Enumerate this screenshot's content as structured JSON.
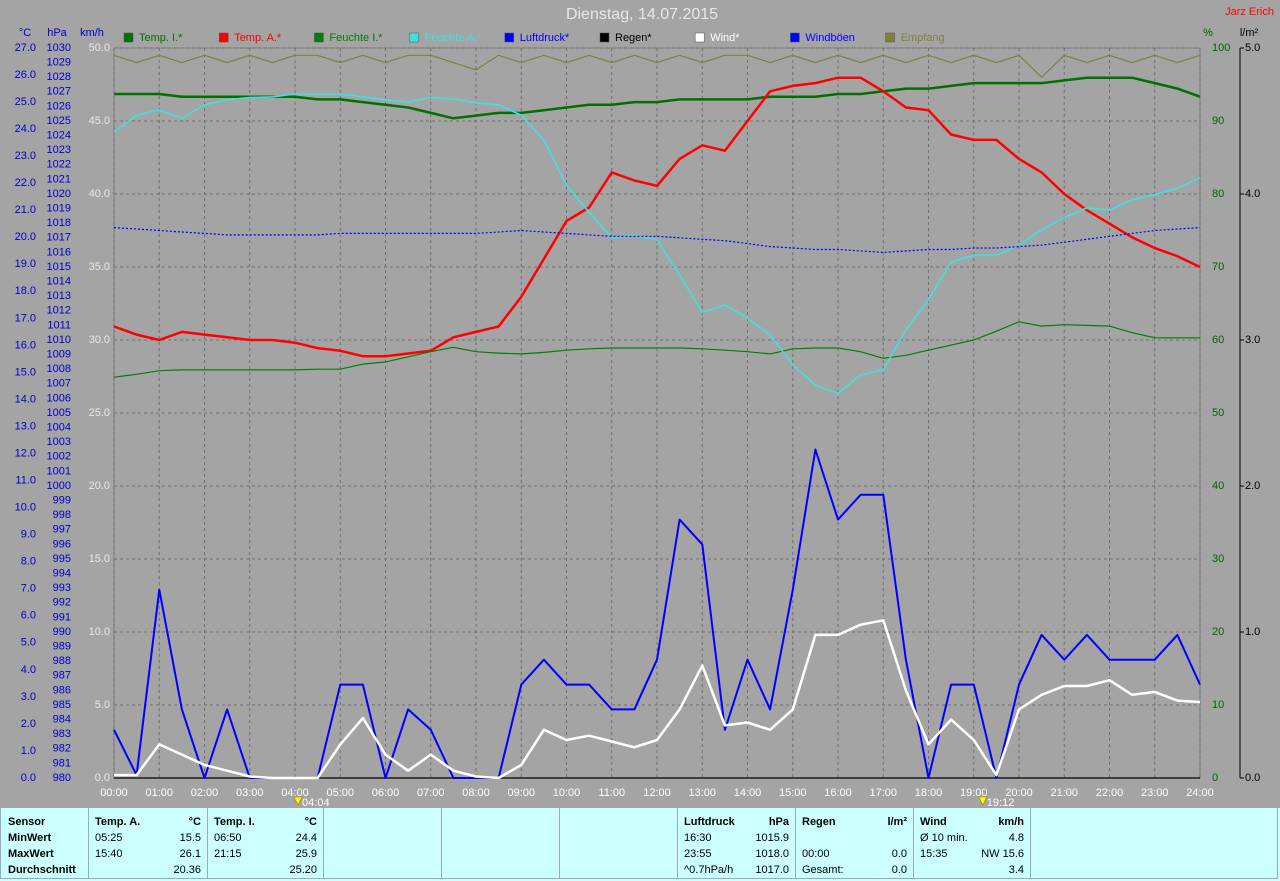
{
  "chart_data": {
    "type": "line",
    "title": "Dienstag, 14.07.2015",
    "author": "Jarz Erich",
    "grid": true,
    "x": [
      0,
      0.5,
      1,
      1.5,
      2,
      2.5,
      3,
      3.5,
      4,
      4.5,
      5,
      5.5,
      6,
      6.5,
      7,
      7.5,
      8,
      8.5,
      9,
      9.5,
      10,
      10.5,
      11,
      11.5,
      12,
      12.5,
      13,
      13.5,
      14,
      14.5,
      15,
      15.5,
      16,
      16.5,
      17,
      17.5,
      18,
      18.5,
      19,
      19.5,
      20,
      20.5,
      21,
      21.5,
      22,
      22.5,
      23,
      23.5,
      24
    ],
    "xlim": [
      0,
      24
    ],
    "xticks": [
      {
        "value": 0,
        "label": "00:00"
      },
      {
        "value": 1,
        "label": "01:00"
      },
      {
        "value": 2,
        "label": "02:00"
      },
      {
        "value": 3,
        "label": "03:00"
      },
      {
        "value": 4,
        "label": "04:00"
      },
      {
        "value": 5,
        "label": "05:00"
      },
      {
        "value": 6,
        "label": "06:00"
      },
      {
        "value": 7,
        "label": "07:00"
      },
      {
        "value": 8,
        "label": "08:00"
      },
      {
        "value": 9,
        "label": "09:00"
      },
      {
        "value": 10,
        "label": "10:00"
      },
      {
        "value": 11,
        "label": "11:00"
      },
      {
        "value": 12,
        "label": "12:00"
      },
      {
        "value": 13,
        "label": "13:00"
      },
      {
        "value": 14,
        "label": "14:00"
      },
      {
        "value": 15,
        "label": "15:00"
      },
      {
        "value": 16,
        "label": "16:00"
      },
      {
        "value": 17,
        "label": "17:00"
      },
      {
        "value": 18,
        "label": "18:00"
      },
      {
        "value": 19,
        "label": "19:00"
      },
      {
        "value": 20,
        "label": "20:00"
      },
      {
        "value": 21,
        "label": "21:00"
      },
      {
        "value": 22,
        "label": "22:00"
      },
      {
        "value": 23,
        "label": "23:00"
      },
      {
        "value": 24,
        "label": "24:00"
      }
    ],
    "sun_markers": [
      {
        "value": 4.067,
        "label": "04:04"
      },
      {
        "value": 19.2,
        "label": "19:12"
      }
    ],
    "axes": [
      {
        "label": "°C",
        "color": "#0000cc",
        "side": "left",
        "lim": [
          0,
          27
        ],
        "ticks": [
          {
            "value": 0,
            "label": "0.0"
          },
          {
            "value": 1,
            "label": "1.0"
          },
          {
            "value": 2,
            "label": "2.0"
          },
          {
            "value": 3,
            "label": "3.0"
          },
          {
            "value": 4,
            "label": "4.0"
          },
          {
            "value": 5,
            "label": "5.0"
          },
          {
            "value": 6,
            "label": "6.0"
          },
          {
            "value": 7,
            "label": "7.0"
          },
          {
            "value": 8,
            "label": "8.0"
          },
          {
            "value": 9,
            "label": "9.0"
          },
          {
            "value": 10,
            "label": "10.0"
          },
          {
            "value": 11,
            "label": "11.0"
          },
          {
            "value": 12,
            "label": "12.0"
          },
          {
            "value": 13,
            "label": "13.0"
          },
          {
            "value": 14,
            "label": "14.0"
          },
          {
            "value": 15,
            "label": "15.0"
          },
          {
            "value": 16,
            "label": "16.0"
          },
          {
            "value": 17,
            "label": "17.0"
          },
          {
            "value": 18,
            "label": "18.0"
          },
          {
            "value": 19,
            "label": "19.0"
          },
          {
            "value": 20,
            "label": "20.0"
          },
          {
            "value": 21,
            "label": "21.0"
          },
          {
            "value": 22,
            "label": "22.0"
          },
          {
            "value": 23,
            "label": "23.0"
          },
          {
            "value": 24,
            "label": "24.0"
          },
          {
            "value": 25,
            "label": "25.0"
          },
          {
            "value": 26,
            "label": "26.0"
          },
          {
            "value": 27,
            "label": "27.0"
          }
        ]
      },
      {
        "label": "hPa",
        "color": "#0000cc",
        "side": "left",
        "lim": [
          980,
          1030
        ],
        "ticks": [
          980,
          981,
          982,
          983,
          984,
          985,
          986,
          987,
          988,
          989,
          990,
          991,
          992,
          993,
          994,
          995,
          996,
          997,
          998,
          999,
          1000,
          1001,
          1002,
          1003,
          1004,
          1005,
          1006,
          1007,
          1008,
          1009,
          1010,
          1011,
          1012,
          1013,
          1014,
          1015,
          1016,
          1017,
          1018,
          1019,
          1020,
          1021,
          1022,
          1023,
          1024,
          1025,
          1026,
          1027,
          1028,
          1029,
          1030
        ]
      },
      {
        "label": "km/h",
        "color": "#e8e8e8",
        "side": "left",
        "grid": true,
        "lim": [
          0,
          50
        ],
        "ticks": [
          {
            "value": 0,
            "label": "0.0"
          },
          {
            "value": 5,
            "label": "5.0"
          },
          {
            "value": 10,
            "label": "10.0"
          },
          {
            "value": 15,
            "label": "15.0"
          },
          {
            "value": 20,
            "label": "20.0"
          },
          {
            "value": 25,
            "label": "25.0"
          },
          {
            "value": 30,
            "label": "30.0"
          },
          {
            "value": 35,
            "label": "35.0"
          },
          {
            "value": 40,
            "label": "40.0"
          },
          {
            "value": 45,
            "label": "45.0"
          },
          {
            "value": 50,
            "label": "50.0"
          }
        ]
      },
      {
        "label": "%",
        "color": "#006400",
        "side": "right",
        "lim": [
          0,
          100
        ],
        "ticks": [
          0,
          10,
          20,
          30,
          40,
          50,
          60,
          70,
          80,
          90,
          100
        ]
      },
      {
        "label": "l/m²",
        "color": "#000000",
        "side": "right",
        "lim": [
          0,
          5
        ],
        "ticks": [
          {
            "value": 0,
            "label": "0.0"
          },
          {
            "value": 1,
            "label": "1.0"
          },
          {
            "value": 2,
            "label": "2.0"
          },
          {
            "value": 3,
            "label": "3.0"
          },
          {
            "value": 4,
            "label": "4.0"
          },
          {
            "value": 5,
            "label": "5.0"
          }
        ]
      }
    ],
    "series": [
      {
        "name": "Temp. I.*",
        "color": "#007000",
        "axis": "°C",
        "line_width": 2.5,
        "values": [
          25.3,
          25.3,
          25.3,
          25.2,
          25.2,
          25.2,
          25.2,
          25.2,
          25.2,
          25.1,
          25.1,
          25.0,
          24.9,
          24.8,
          24.6,
          24.4,
          24.5,
          24.6,
          24.6,
          24.7,
          24.8,
          24.9,
          24.9,
          25.0,
          25.0,
          25.1,
          25.1,
          25.1,
          25.1,
          25.2,
          25.2,
          25.2,
          25.3,
          25.3,
          25.4,
          25.5,
          25.5,
          25.6,
          25.7,
          25.7,
          25.7,
          25.7,
          25.8,
          25.9,
          25.9,
          25.9,
          25.7,
          25.5,
          25.2
        ]
      },
      {
        "name": "Temp. A.*",
        "color": "#ff0000",
        "axis": "°C",
        "line_width": 2.5,
        "values": [
          16.7,
          16.4,
          16.2,
          16.5,
          16.4,
          16.3,
          16.2,
          16.2,
          16.1,
          15.9,
          15.8,
          15.6,
          15.6,
          15.7,
          15.8,
          16.3,
          16.5,
          16.7,
          17.8,
          19.2,
          20.6,
          21.1,
          22.4,
          22.1,
          21.9,
          22.9,
          23.4,
          23.2,
          24.3,
          25.4,
          25.6,
          25.7,
          25.9,
          25.9,
          25.4,
          24.8,
          24.7,
          23.8,
          23.6,
          23.6,
          22.9,
          22.4,
          21.6,
          21.0,
          20.5,
          20.0,
          19.6,
          19.3,
          18.9
        ]
      },
      {
        "name": "Feuchte I.*",
        "color": "#008000",
        "axis": "%",
        "line_width": 1.2,
        "values": [
          54.9,
          55.3,
          55.8,
          55.9,
          55.9,
          55.9,
          55.9,
          55.9,
          55.9,
          56.0,
          56.0,
          56.7,
          57.0,
          57.7,
          58.4,
          59.0,
          58.4,
          58.2,
          58.1,
          58.3,
          58.6,
          58.8,
          58.9,
          58.9,
          58.9,
          58.9,
          58.8,
          58.6,
          58.4,
          58.1,
          58.8,
          58.9,
          58.9,
          58.4,
          57.5,
          57.9,
          58.6,
          59.3,
          60.0,
          61.2,
          62.5,
          61.9,
          62.1,
          62.0,
          61.9,
          61.0,
          60.3,
          60.3,
          60.3
        ]
      },
      {
        "name": "Feuchte A.*",
        "color": "#40e0e0",
        "axis": "%",
        "line_width": 1.6,
        "values": [
          88.5,
          90.8,
          91.5,
          90.4,
          92.2,
          92.9,
          93.2,
          93.3,
          93.7,
          93.7,
          93.7,
          93.3,
          92.9,
          92.6,
          93.2,
          93.0,
          92.5,
          92.2,
          90.8,
          87.4,
          81.2,
          77.5,
          74.0,
          74.4,
          73.7,
          68.9,
          63.8,
          64.8,
          63.0,
          60.7,
          56.6,
          53.8,
          52.7,
          55.2,
          55.9,
          61.4,
          65.5,
          70.7,
          71.6,
          71.6,
          73.0,
          75.1,
          76.8,
          78.1,
          77.8,
          79.2,
          79.9,
          80.8,
          82.2
        ]
      },
      {
        "name": "Luftdruck*",
        "color": "#0000ff",
        "axis": "hPa",
        "line_width": 1.2,
        "dotted": true,
        "values": [
          1017.7,
          1017.6,
          1017.5,
          1017.4,
          1017.3,
          1017.2,
          1017.2,
          1017.2,
          1017.2,
          1017.2,
          1017.3,
          1017.3,
          1017.3,
          1017.3,
          1017.3,
          1017.3,
          1017.3,
          1017.4,
          1017.5,
          1017.4,
          1017.3,
          1017.2,
          1017.1,
          1017.1,
          1017.1,
          1017.0,
          1016.9,
          1016.8,
          1016.6,
          1016.4,
          1016.3,
          1016.2,
          1016.2,
          1016.1,
          1016.0,
          1016.1,
          1016.2,
          1016.2,
          1016.3,
          1016.3,
          1016.4,
          1016.5,
          1016.7,
          1016.9,
          1017.1,
          1017.3,
          1017.5,
          1017.6,
          1017.7
        ]
      },
      {
        "name": "Regen*",
        "color": "#000000",
        "axis": "l/m²",
        "line_width": 1.2,
        "values": [
          0,
          0,
          0,
          0,
          0,
          0,
          0,
          0,
          0,
          0,
          0,
          0,
          0,
          0,
          0,
          0,
          0,
          0,
          0,
          0,
          0,
          0,
          0,
          0,
          0,
          0,
          0,
          0,
          0,
          0,
          0,
          0,
          0,
          0,
          0,
          0,
          0,
          0,
          0,
          0,
          0,
          0,
          0,
          0,
          0,
          0,
          0,
          0,
          0
        ]
      },
      {
        "name": "Empfang",
        "color": "#808040",
        "axis": "%",
        "line_width": 1.2,
        "values": [
          99,
          98,
          99,
          98,
          99,
          98,
          99,
          98,
          99,
          99,
          98,
          99,
          98,
          99,
          99,
          98,
          97,
          99,
          98,
          99,
          98,
          99,
          98,
          99,
          98,
          99,
          98,
          99,
          99,
          98,
          99,
          98,
          99,
          98,
          99,
          98,
          99,
          98,
          99,
          98,
          99,
          96,
          99,
          98,
          99,
          98,
          99,
          98,
          99
        ]
      },
      {
        "name": "Windböen",
        "color": "#0000ff",
        "axis": "km/h",
        "line_width": 2,
        "values": [
          3.3,
          0.2,
          12.9,
          4.7,
          0,
          4.7,
          0,
          0,
          0,
          0,
          6.4,
          6.4,
          0,
          4.7,
          3.3,
          0,
          0,
          0,
          6.4,
          8.1,
          6.4,
          6.4,
          4.7,
          4.7,
          8.1,
          17.7,
          16.0,
          3.3,
          8.1,
          4.7,
          12.9,
          22.5,
          17.7,
          19.4,
          19.4,
          8.1,
          0,
          6.4,
          6.4,
          0,
          6.4,
          9.8,
          8.1,
          9.8,
          8.1,
          8.1,
          8.1,
          9.8,
          6.4
        ]
      },
      {
        "name": "Wind*",
        "color": "#ffffff",
        "axis": "km/h",
        "line_width": 2.5,
        "values": [
          0.2,
          0.2,
          2.3,
          1.6,
          0.9,
          0.5,
          0.1,
          0,
          0,
          0,
          2.3,
          4.1,
          1.6,
          0.5,
          1.6,
          0.5,
          0.1,
          0,
          0.9,
          3.3,
          2.6,
          2.9,
          2.5,
          2.1,
          2.6,
          4.7,
          7.7,
          3.6,
          3.8,
          3.3,
          4.7,
          9.8,
          9.8,
          10.5,
          10.8,
          6.0,
          2.3,
          4.0,
          2.6,
          0.2,
          4.7,
          5.7,
          6.3,
          6.3,
          6.7,
          5.7,
          5.9,
          5.3,
          5.2
        ]
      }
    ],
    "legend_order": [
      "Temp. I.*",
      "Temp. A.*",
      "Feuchte I.*",
      "Feuchte A.*",
      "Luftdruck*",
      "Regen*",
      "Wind*",
      "Windböen",
      "Empfang"
    ]
  },
  "stats": {
    "sensor": [
      "Sensor",
      "MinWert",
      "MaxWert",
      "Durchschnitt"
    ],
    "panels": [
      {
        "header": [
          "Temp. A.",
          "°C"
        ],
        "rows": [
          [
            "05:25",
            "15.5"
          ],
          [
            "15:40",
            "26.1"
          ],
          [
            null,
            "20.36"
          ]
        ]
      },
      {
        "header": [
          "Temp. I.",
          "°C"
        ],
        "rows": [
          [
            "06:50",
            "24.4"
          ],
          [
            "21:15",
            "25.9"
          ],
          [
            null,
            "25.20"
          ]
        ]
      },
      {
        "header": [
          "Luftdruck",
          "hPa"
        ],
        "rows": [
          [
            "16:30",
            "1015.9"
          ],
          [
            "23:55",
            "1018.0"
          ],
          [
            "^0.7hPa/h",
            "1017.0"
          ]
        ]
      },
      {
        "header": [
          "Regen",
          "l/m²"
        ],
        "rows": [
          [
            null,
            null
          ],
          [
            "00:00",
            "0.0"
          ],
          [
            "Gesamt:",
            "0.0"
          ]
        ]
      },
      {
        "header": [
          "Wind",
          "km/h"
        ],
        "rows": [
          [
            "Ø 10 min.",
            "4.8"
          ],
          [
            "15:35",
            "NW 15.6"
          ],
          [
            null,
            "3.4"
          ]
        ]
      }
    ]
  }
}
